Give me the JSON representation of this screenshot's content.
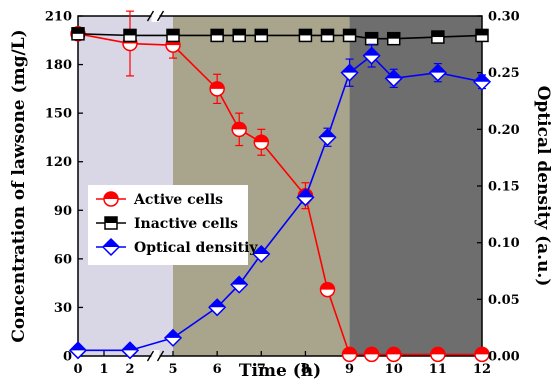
{
  "chart_data": {
    "type": "line",
    "xlabel": "Time (h)",
    "ylabel_left": "Concentration of lawsone (mg/L)",
    "ylabel_right": "Optical density (a.u.)",
    "x_ticks": [
      "0",
      "1",
      "2",
      "5",
      "6",
      "7",
      "8",
      "9",
      "10",
      "11",
      "12"
    ],
    "x_tick_values": [
      0,
      1,
      2,
      5,
      6,
      7,
      8,
      9,
      10,
      11,
      12
    ],
    "y_left_ticks": [
      "0",
      "30",
      "60",
      "90",
      "120",
      "150",
      "180",
      "210"
    ],
    "y_left_values": [
      0,
      30,
      60,
      90,
      120,
      150,
      180,
      210
    ],
    "y_left_lim": [
      0,
      210
    ],
    "y_right_ticks": [
      "0.00",
      "0.05",
      "0.10",
      "0.15",
      "0.20",
      "0.25",
      "0.30"
    ],
    "y_right_values": [
      0,
      0.05,
      0.1,
      0.15,
      0.2,
      0.25,
      0.3
    ],
    "y_right_lim": [
      0,
      0.3
    ],
    "axis_break_between": [
      2,
      5
    ],
    "background_regions": [
      {
        "from": 0,
        "to": 5,
        "color": "#d9d6e6"
      },
      {
        "from": 5,
        "to": 9,
        "color": "#a9a58c"
      },
      {
        "from": 9,
        "to": 12,
        "color": "#6e6e6e"
      }
    ],
    "legend_position": "center-left",
    "series": [
      {
        "name": "Active cells",
        "axis": "left",
        "color": "#ff0000",
        "marker": "half-circle",
        "x": [
          0,
          2,
          5,
          6,
          6.5,
          7,
          8,
          8.5,
          9,
          9.5,
          10,
          11,
          12
        ],
        "y": [
          199,
          193,
          192,
          165,
          140,
          132,
          99,
          41,
          1,
          1,
          1,
          1,
          1
        ],
        "err": [
          3,
          20,
          8,
          9,
          10,
          8,
          8,
          2,
          1,
          1,
          1,
          1,
          1
        ]
      },
      {
        "name": "Inactive cells",
        "axis": "left",
        "color": "#000000",
        "marker": "half-square",
        "x": [
          0,
          2,
          5,
          6,
          6.5,
          7,
          8,
          8.5,
          9,
          9.5,
          10,
          11,
          12
        ],
        "y": [
          199,
          198,
          198,
          198,
          198,
          198,
          198,
          198,
          198,
          196,
          196,
          197,
          198
        ],
        "err": [
          2,
          3,
          3,
          3,
          3,
          3,
          3,
          3,
          3,
          3,
          3,
          3,
          3
        ]
      },
      {
        "name": "Optical densitiy",
        "axis": "right",
        "color": "#0000ff",
        "marker": "half-diamond",
        "x": [
          0,
          2,
          5,
          6,
          6.5,
          7,
          8,
          8.5,
          9,
          9.5,
          10,
          11,
          12
        ],
        "y": [
          0.005,
          0.005,
          0.016,
          0.043,
          0.063,
          0.09,
          0.14,
          0.193,
          0.25,
          0.265,
          0.245,
          0.25,
          0.242
        ],
        "err": [
          0.002,
          0.002,
          0.004,
          0.004,
          0.004,
          0.004,
          0.005,
          0.008,
          0.012,
          0.01,
          0.008,
          0.008,
          0.006
        ]
      }
    ]
  }
}
